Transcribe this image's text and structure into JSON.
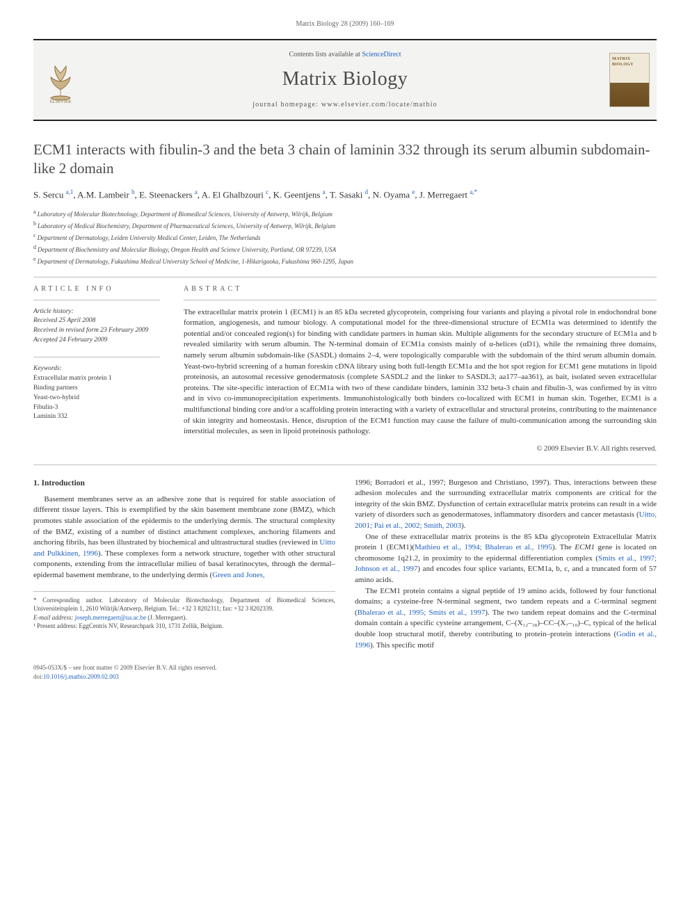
{
  "running_head": "Matrix Biology 28 (2009) 160–169",
  "masthead": {
    "contents_prefix": "Contents lists available at ",
    "contents_link": "ScienceDirect",
    "journal": "Matrix Biology",
    "homepage_prefix": "journal homepage: ",
    "homepage": "www.elsevier.com/locate/matbio",
    "publisher_logo_label": "ELSEVIER"
  },
  "title": "ECM1 interacts with fibulin-3 and the beta 3 chain of laminin 332 through its serum albumin subdomain-like 2 domain",
  "authors_html": "S. Sercu <sup>a,1</sup>, A.M. Lambeir <sup>b</sup>, E. Steenackers <sup>a</sup>, A. El Ghalbzouri <sup>c</sup>, K. Geentjens <sup>a</sup>, T. Sasaki <sup>d</sup>, N. Oyama <sup>e</sup>, J. Merregaert <sup>a,</sup><sup class=\"star-sup\">*</sup>",
  "affiliations": [
    {
      "k": "a",
      "t": "Laboratory of Molecular Biotechnology, Department of Biomedical Sciences, University of Antwerp, Wilrijk, Belgium"
    },
    {
      "k": "b",
      "t": "Laboratory of Medical Biochemistry, Department of Pharmaceutical Sciences, University of Antwerp, Wilrijk, Belgium"
    },
    {
      "k": "c",
      "t": "Department of Dermatology, Leiden University Medical Center, Leiden, The Netherlands"
    },
    {
      "k": "d",
      "t": "Department of Biochemistry and Molecular Biology, Oregon Health and Science University, Portland, OR 97239, USA"
    },
    {
      "k": "e",
      "t": "Department of Dermatology, Fukushima Medical University School of Medicine, 1-Hikarigaoka, Fukushima 960-1295, Japan"
    }
  ],
  "info": {
    "head": "ARTICLE INFO",
    "history_label": "Article history:",
    "received": "Received 25 April 2008",
    "revised": "Received in revised form 23 February 2009",
    "accepted": "Accepted 24 February 2009",
    "keywords_label": "Keywords:",
    "keywords": [
      "Extracellular matrix protein 1",
      "Binding partners",
      "Yeast-two-hybrid",
      "Fibulin-3",
      "Laminin 332"
    ]
  },
  "abstract": {
    "head": "ABSTRACT",
    "text": "The extracellular matrix protein 1 (ECM1) is an 85 kDa secreted glycoprotein, comprising four variants and playing a pivotal role in endochondral bone formation, angiogenesis, and tumour biology. A computational model for the three-dimensional structure of ECM1a was determined to identify the potential and/or concealed region(s) for binding with candidate partners in human skin. Multiple alignments for the secondary structure of ECM1a and b revealed similarity with serum albumin. The N-terminal domain of ECM1a consists mainly of α-helices (αD1), while the remaining three domains, namely serum albumin subdomain-like (SASDL) domains 2–4, were topologically comparable with the subdomain of the third serum albumin domain. Yeast-two-hybrid screening of a human foreskin cDNA library using both full-length ECM1a and the hot spot region for ECM1 gene mutations in lipoid proteinosis, an autosomal recessive genodermatosis (complete SASDL2 and the linker to SASDL3; aa177–aa361), as bait, isolated seven extracellular proteins. The site-specific interaction of ECM1a with two of these candidate binders, laminin 332 beta-3 chain and fibulin-3, was confirmed by in vitro and in vivo co-immunoprecipitation experiments. Immunohistologically both binders co-localized with ECM1 in human skin. Together, ECM1 is a multifunctional binding core and/or a scaffolding protein interacting with a variety of extracellular and structural proteins, contributing to the maintenance of skin integrity and homeostasis. Hence, disruption of the ECM1 function may cause the failure of multi-communication among the surrounding skin interstitial molecules, as seen in lipoid proteinosis pathology.",
    "copyright": "© 2009 Elsevier B.V. All rights reserved."
  },
  "body": {
    "intro_head": "1. Introduction",
    "p1": "Basement membranes serve as an adhesive zone that is required for stable association of different tissue layers. This is exemplified by the skin basement membrane zone (BMZ), which promotes stable association of the epidermis to the underlying dermis. The structural complexity of the BMZ, existing of a number of distinct attachment complexes, anchoring filaments and anchoring fibrils, has been illustrated by biochemical and ultrastructural studies (reviewed in <span class=\"link\">Uitto and Pulkkinen, 1996</span>). These complexes form a network structure, together with other structural components, extending from the intracellular milieu of basal keratinocytes, through the dermal–epidermal basement membrane, to the underlying dermis (<span class=\"link\">Green and Jones,",
    "p2_top": "1996; Borradori et al., 1997; Burgeson and Christiano, 1997</span>). Thus, interactions between these adhesion molecules and the surrounding extracellular matrix components are critical for the integrity of the skin BMZ. Dysfunction of certain extracellular matrix proteins can result in a wide variety of disorders such as genodermatoses, inflammatory disorders and cancer metastasis (<span class=\"link\">Uitto, 2001; Pai et al., 2002; Smith, 2003</span>).",
    "p3": "One of these extracellular matrix proteins is the 85 kDa glycoprotein Extracellular Matrix protein 1 (ECM1)(<span class=\"link\">Mathieu et al., 1994; Bhalerao et al., 1995</span>). The <span class=\"i\">ECM1</span> gene is located on chromosome 1q21.2, in proximity to the epidermal differentiation complex (<span class=\"link\">Smits et al., 1997; Johnson et al., 1997</span>) and encodes four splice variants, ECM1a, b, c, and a truncated form of 57 amino acids.",
    "p4": "The ECM1 protein contains a signal peptide of 19 amino acids, followed by four functional domains; a cysteine-free N-terminal segment, two tandem repeats and a C-terminal segment (<span class=\"link\">Bhalerao et al., 1995; Smits et al., 1997</span>). The two tandem repeat domains and the C-terminal domain contain a specific cysteine arrangement, C–(X₁₂–₃₈)–CC–(X₇–₁₀)–C, typical of the helical double loop structural motif, thereby contributing to protein–protein interactions (<span class=\"link\">Godin et al., 1996</span>). This specific motif"
  },
  "footnotes": {
    "corr": "* Corresponding author. Laboratory of Molecular Biotechnology, Department of Biomedical Sciences, Universiteitsplein 1, 2610 Wilrijk/Antwerp, Belgium. Tel.: +32 3 8202311; fax: +32 3 8202339.",
    "email_label": "E-mail address: ",
    "email": "joseph.merregaert@ua.ac.be",
    "email_tail": " (J. Merregaert).",
    "present": "¹ Present address: EggCentris NV, Researchpark 310, 1731 Zellik, Belgium."
  },
  "bottom": {
    "line1": "0945-053X/$ – see front matter © 2009 Elsevier B.V. All rights reserved.",
    "doi_label": "doi:",
    "doi": "10.1016/j.matbio.2009.02.003"
  },
  "colors": {
    "link": "#2060c0",
    "rule": "#bdbdbd",
    "text": "#333333",
    "muted": "#555555"
  }
}
